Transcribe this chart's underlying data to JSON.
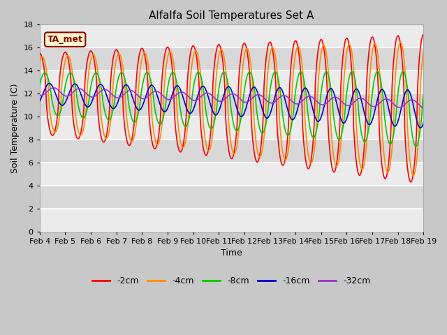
{
  "title": "Alfalfa Soil Temperatures Set A",
  "xlabel": "Time",
  "ylabel": "Soil Temperature (C)",
  "ylim": [
    0,
    18
  ],
  "yticks": [
    0,
    2,
    4,
    6,
    8,
    10,
    12,
    14,
    16,
    18
  ],
  "x_labels": [
    "Feb 4",
    "Feb 5",
    "Feb 6",
    "Feb 7",
    "Feb 8",
    "Feb 9",
    "Feb 10",
    "Feb 11",
    "Feb 12",
    "Feb 13",
    "Feb 14",
    "Feb 15",
    "Feb 16",
    "Feb 17",
    "Feb 18",
    "Feb 19"
  ],
  "annotation_text": "TA_met",
  "annotation_color": "#8B0000",
  "annotation_bg": "#FFFACD",
  "colors": {
    "-2cm": "#FF0000",
    "-4cm": "#FF8C00",
    "-8cm": "#00CC00",
    "-16cm": "#0000CD",
    "-32cm": "#9932CC"
  },
  "figsize": [
    6.4,
    4.8
  ],
  "dpi": 100,
  "title_fontsize": 11,
  "label_fontsize": 9,
  "tick_fontsize": 8
}
